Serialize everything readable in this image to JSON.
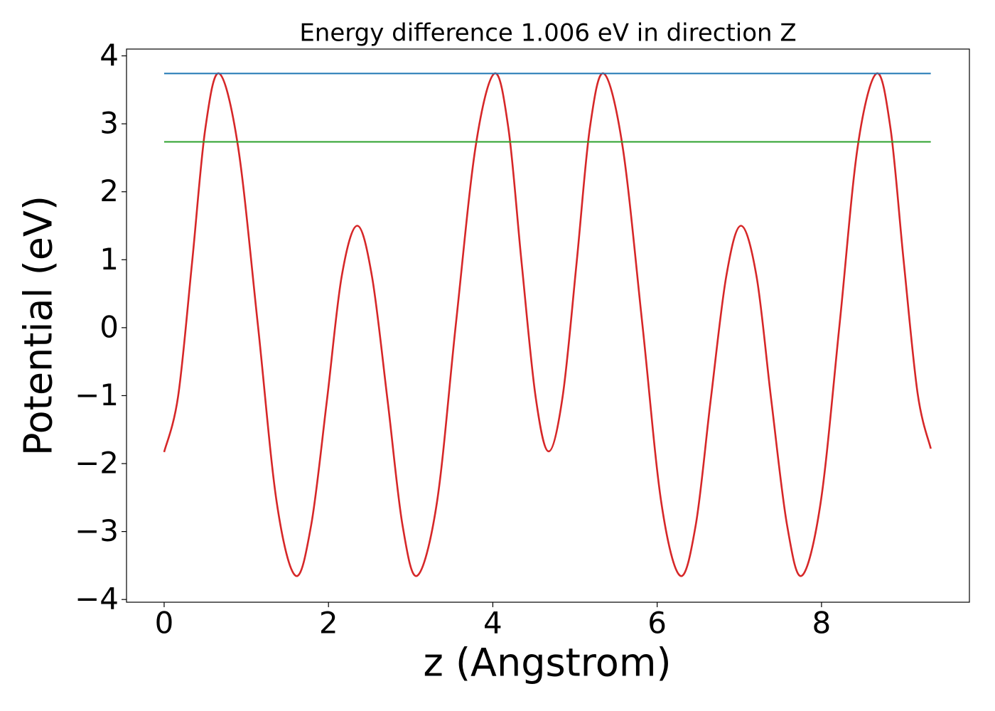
{
  "chart_data": {
    "type": "line",
    "title": "Energy difference 1.006 eV in direction Z",
    "x_label": "z (Angstrom)",
    "y_label": "Potential (eV)",
    "xlim": [
      -0.458,
      9.8
    ],
    "ylim": [
      -4.04,
      4.1
    ],
    "xticks": [
      0,
      2,
      4,
      6,
      8
    ],
    "yticks": [
      {
        "value": -4,
        "label": "−4"
      },
      {
        "value": -3,
        "label": "−3"
      },
      {
        "value": -2,
        "label": "−2"
      },
      {
        "value": -1,
        "label": "−1"
      },
      0,
      1,
      2,
      3,
      4
    ],
    "grid": false,
    "series": [
      {
        "color": "#d62728",
        "x": [
          0,
          0.17,
          0.34,
          0.5,
          0.67,
          0.9,
          1.14,
          1.37,
          1.6,
          1.79,
          1.98,
          2.16,
          2.35,
          2.53,
          2.72,
          2.9,
          3.08,
          3.32,
          3.55,
          3.79,
          4.02,
          4.19,
          4.35,
          4.52,
          4.68,
          4.85,
          5.02,
          5.18,
          5.35,
          5.58,
          5.82,
          6.05,
          6.28,
          6.47,
          6.65,
          6.84,
          7.02,
          7.21,
          7.39,
          7.58,
          7.76,
          7.99,
          8.22,
          8.44,
          8.67,
          8.84,
          9.0,
          9.17,
          9.33
        ],
        "values": [
          -1.83,
          -1.01,
          0.96,
          2.92,
          3.74,
          2.66,
          0.05,
          -2.57,
          -3.65,
          -2.9,
          -1.08,
          0.75,
          1.5,
          0.75,
          -1.08,
          -2.9,
          -3.65,
          -2.57,
          0.05,
          2.66,
          3.74,
          2.93,
          0.96,
          -1.01,
          -1.82,
          -1.01,
          0.96,
          2.93,
          3.74,
          2.66,
          0.05,
          -2.57,
          -3.65,
          -2.9,
          -1.08,
          0.75,
          1.5,
          0.75,
          -1.08,
          -2.9,
          -3.65,
          -2.57,
          0.05,
          2.66,
          3.74,
          2.93,
          0.98,
          -0.97,
          -1.78
        ]
      },
      {
        "color": "#1f77b4",
        "x": [
          0,
          9.33
        ],
        "values": [
          3.74,
          3.74
        ]
      },
      {
        "color": "#2ca02c",
        "x": [
          0,
          9.33
        ],
        "values": [
          2.734,
          2.734
        ]
      }
    ]
  }
}
